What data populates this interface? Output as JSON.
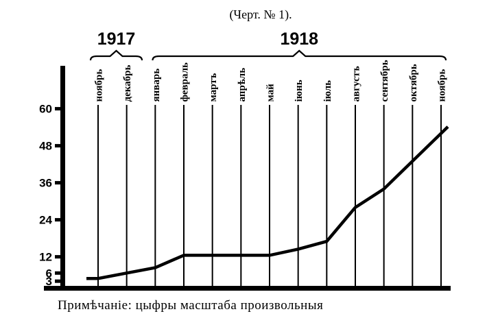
{
  "colors": {
    "ink": "#000000",
    "paper": "#ffffff"
  },
  "chart_data": {
    "type": "line",
    "title": "(Черт. № 1).",
    "note": "Примѣчаніе: цыфры масштаба произвольныя",
    "categories": [
      "ноябрь",
      "декабрь",
      "январь",
      "февраль",
      "мартъ",
      "апрѣль",
      "май",
      "іюнь",
      "іюль",
      "августъ",
      "сентябрь",
      "октябрь",
      "ноябрь"
    ],
    "year_groups": [
      {
        "label": "1917",
        "from_index": 0,
        "to_index": 1
      },
      {
        "label": "1918",
        "from_index": 2,
        "to_index": 12
      }
    ],
    "values": [
      4,
      6,
      8,
      12.5,
      12.5,
      12.5,
      12.5,
      14.5,
      17,
      28,
      34,
      43,
      52
    ],
    "y_ticks": [
      60,
      48,
      36,
      24,
      12,
      6,
      3
    ],
    "ylim": [
      0,
      66
    ],
    "xlabel": "",
    "ylabel": "",
    "legend": [],
    "grid": "vertical month lines only",
    "line_color": "#000000",
    "scale_note_meaning": "цыфры масштаба произвольныя"
  }
}
